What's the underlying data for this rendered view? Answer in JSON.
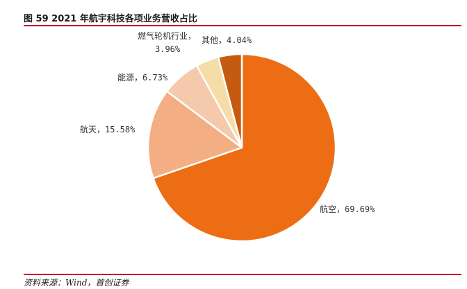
{
  "figure": {
    "title": "图 59 2021 年航宇科技各项业务营收占比",
    "source": "资料来源：Wind，首创证券"
  },
  "chart_data": {
    "type": "pie",
    "title": "图 59 2021 年航宇科技各项业务营收占比",
    "slices": [
      {
        "name": "航空",
        "value": 69.69,
        "color": "#ED6D14",
        "label": "航空，69.69%"
      },
      {
        "name": "航天",
        "value": 15.58,
        "color": "#F3AF83",
        "label": "航天，15.58%"
      },
      {
        "name": "能源",
        "value": 6.73,
        "color": "#F5C9AC",
        "label": "能源，6.73%"
      },
      {
        "name": "燃气轮机行业",
        "value": 3.96,
        "color": "#F6DDA8",
        "label_lines": [
          "燃气轮机行业，",
          "3.96%"
        ]
      },
      {
        "name": "其他",
        "value": 4.04,
        "color": "#C55B11",
        "label": "其他，4.04%"
      }
    ]
  }
}
